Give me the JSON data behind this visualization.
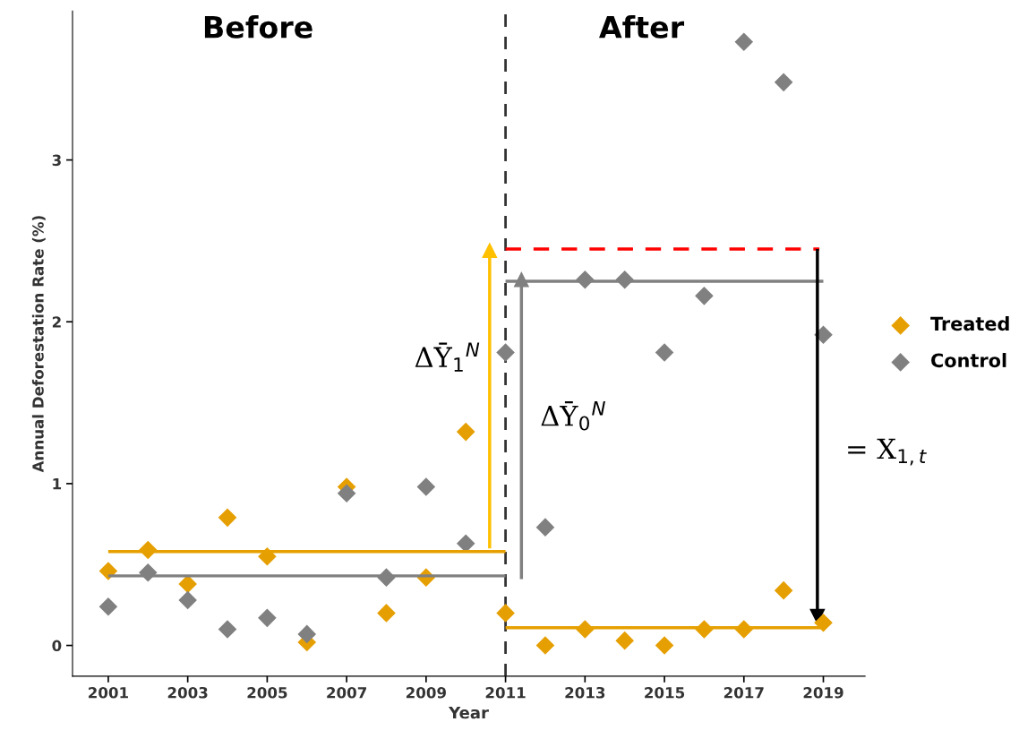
{
  "chart_data": {
    "type": "scatter",
    "xlabel": "Year",
    "ylabel": "Annual Deforestation Rate (%)",
    "x": [
      2001,
      2002,
      2003,
      2004,
      2005,
      2006,
      2007,
      2008,
      2009,
      2010,
      2011,
      2012,
      2013,
      2014,
      2015,
      2016,
      2017,
      2018,
      2019
    ],
    "legend": "right",
    "grid": false,
    "xlim": [
      2000.1,
      2020.05
    ],
    "xticks": [
      2001,
      2003,
      2005,
      2007,
      2009,
      2011,
      2013,
      2015,
      2017,
      2019
    ],
    "ylim": [
      -0.19,
      3.92
    ],
    "yticks": [
      0,
      1,
      2,
      3
    ],
    "series": [
      {
        "name": "Treated",
        "color": "#e69f00",
        "marker": "diamond",
        "values": [
          0.46,
          0.59,
          0.38,
          0.79,
          0.55,
          0.02,
          0.98,
          0.2,
          0.42,
          1.32,
          0.2,
          0.0,
          0.1,
          0.03,
          0.0,
          0.1,
          0.1,
          0.34,
          0.14
        ]
      },
      {
        "name": "Control",
        "color": "#808080",
        "marker": "diamond",
        "values": [
          0.24,
          0.45,
          0.28,
          0.1,
          0.17,
          0.07,
          0.94,
          0.42,
          0.98,
          0.63,
          1.81,
          0.73,
          2.26,
          2.26,
          1.81,
          2.16,
          3.73,
          3.48,
          1.92
        ]
      },
      {
        "type": "line",
        "color": "#e6a000",
        "x": [
          2001,
          2011
        ],
        "values": [
          0.58,
          0.58
        ]
      },
      {
        "type": "line",
        "color": "#808080",
        "x": [
          2001,
          2011
        ],
        "values": [
          0.43,
          0.43
        ]
      },
      {
        "type": "line",
        "color": "#e6a000",
        "x": [
          2011,
          2019
        ],
        "values": [
          0.11,
          0.11
        ]
      },
      {
        "type": "line",
        "color": "#808080",
        "x": [
          2011,
          2019
        ],
        "values": [
          2.25,
          2.25
        ]
      },
      {
        "type": "line",
        "color": "#ff0000",
        "line_style": "dashed",
        "x": [
          2011,
          2018.9
        ],
        "values": [
          2.45,
          2.45
        ]
      },
      {
        "type": "line",
        "color": "#ffc000",
        "marker": "triangle",
        "x": [
          2010.6,
          2010.6
        ],
        "values": [
          0.6,
          2.44
        ]
      },
      {
        "type": "line",
        "color": "#808080",
        "marker": "triangle",
        "x": [
          2011.4,
          2011.4
        ],
        "values": [
          0.41,
          2.26
        ]
      },
      {
        "type": "line",
        "color": "#000000",
        "marker": "triangle",
        "x": [
          2018.85,
          2018.85
        ],
        "values": [
          2.45,
          0.18
        ]
      }
    ],
    "ref_lines": [
      {
        "axis": "x",
        "value": 2011,
        "color": "#333333",
        "line_style": "dashed"
      }
    ],
    "annotations": [
      "Before",
      "After",
      "ΔȲ$_{1}$$^{N}$",
      "ΔȲ$_{0}$$^{N}$",
      "= X$_{1,t}$"
    ]
  }
}
